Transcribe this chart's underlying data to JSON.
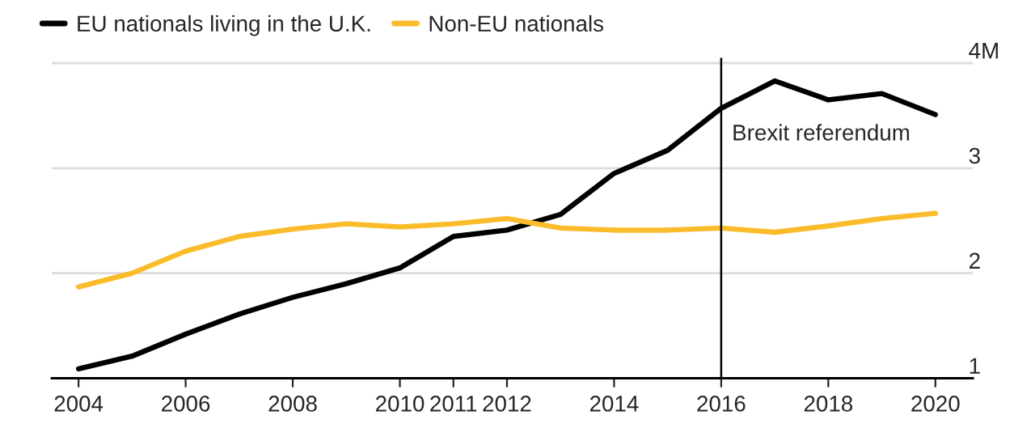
{
  "chart_data": {
    "type": "line",
    "x": [
      2004,
      2005,
      2006,
      2007,
      2008,
      2009,
      2010,
      2011,
      2012,
      2013,
      2014,
      2015,
      2016,
      2017,
      2018,
      2019,
      2020
    ],
    "series": [
      {
        "name": "EU nationals living in the U.K.",
        "color": "#000000",
        "values": [
          1.09,
          1.21,
          1.42,
          1.61,
          1.77,
          1.9,
          2.05,
          2.35,
          2.41,
          2.56,
          2.95,
          3.17,
          3.57,
          3.83,
          3.65,
          3.71,
          3.51
        ]
      },
      {
        "name": "Non-EU nationals",
        "color": "#fbbc2c",
        "values": [
          1.87,
          2.0,
          2.21,
          2.35,
          2.42,
          2.47,
          2.44,
          2.47,
          2.52,
          2.43,
          2.41,
          2.41,
          2.43,
          2.39,
          2.45,
          2.52,
          2.57
        ]
      }
    ],
    "xlim": [
      2003.5,
      2020.7
    ],
    "xticks": [
      2004,
      2006,
      2008,
      2010,
      2011,
      2012,
      2014,
      2016,
      2018,
      2020
    ],
    "ylim": [
      1,
      4.05
    ],
    "yticks": [
      1,
      2,
      3,
      {
        "value": 4,
        "label": "4M"
      }
    ],
    "ref_lines": [
      {
        "axis": "x",
        "value": 2016,
        "label": "Brexit referendum",
        "color": "#000000"
      }
    ],
    "grid": "y",
    "legend": "top left",
    "marker": "none",
    "line_style": "solid"
  }
}
